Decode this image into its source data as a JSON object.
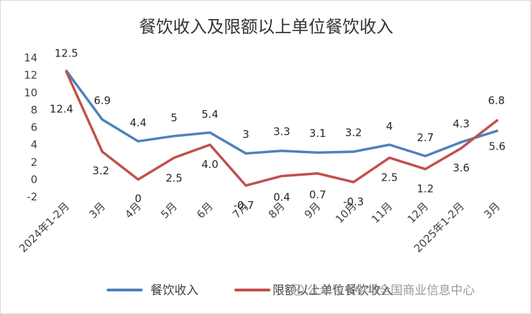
{
  "chart_data": {
    "type": "line",
    "title": "餐饮收入及限额以上单位餐饮收入",
    "xlabel": "",
    "ylabel": "",
    "ylim": [
      -2,
      14
    ],
    "yticks": [
      -2,
      0,
      2,
      4,
      6,
      8,
      10,
      12,
      14
    ],
    "grid": false,
    "legend_position": "bottom",
    "categories": [
      "2024年1-2月",
      "3月",
      "4月",
      "5月",
      "6月",
      "7月",
      "8月",
      "9月",
      "10月",
      "11月",
      "12月",
      "2025年1-2月",
      "3月"
    ],
    "series": [
      {
        "name": "餐饮收入",
        "color": "#4F81BD",
        "values": [
          12.5,
          6.9,
          4.4,
          5,
          5.4,
          3,
          3.3,
          3.1,
          3.2,
          4,
          2.7,
          4.3,
          5.6
        ],
        "labels": [
          "12.5",
          "6.9",
          "4.4",
          "5",
          "5.4",
          "3",
          "3.3",
          "3.1",
          "3.2",
          "4",
          "2.7",
          "4.3",
          "5.6"
        ]
      },
      {
        "name": "限额以上单位餐饮收入",
        "color": "#C0504D",
        "values": [
          12.4,
          3.2,
          0,
          2.5,
          4.0,
          -0.7,
          0.4,
          0.7,
          -0.3,
          2.5,
          1.2,
          3.6,
          6.8
        ],
        "labels": [
          "12.4",
          "3.2",
          "0",
          "2.5",
          "4.0",
          "-0.7",
          "0.4",
          "0.7",
          "-0.3",
          "2.5",
          "1.2",
          "3.6",
          "6.8"
        ]
      }
    ]
  },
  "watermark": "公众号 · 中华全国商业信息中心"
}
